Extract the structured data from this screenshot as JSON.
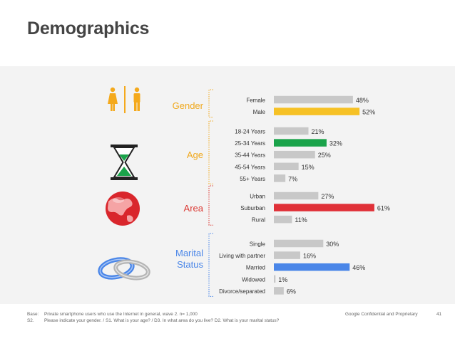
{
  "title": "Demographics",
  "footer": {
    "base_key": "Base:",
    "base_text": "Private smartphone users who use the Internet in general, wave 2. n= 1,000",
    "q_key": "S2.",
    "q_text": "Please indicate your gender. / S1. What is your age? / D3. In what area do you live? D2. What is your marital status?",
    "confidential": "Google Confidential and Proprietary",
    "page_number": "41"
  },
  "colors": {
    "bar": "#c8c8c8",
    "gender_highlight": "#f6c125",
    "age_highlight": "#1aa34a",
    "area_highlight": "#e03138",
    "marital_highlight": "#4a86e8",
    "section_label": "#f0a81c",
    "area_label": "#db3a34",
    "marital_label": "#4a86e8",
    "age_label": "#f0a81c"
  },
  "icons": [
    "restroom-gender-icon",
    "hourglass-icon",
    "globe-icon",
    "wedding-rings-icon"
  ],
  "chart_data": {
    "type": "bar",
    "orientation": "horizontal",
    "value_format": "percent",
    "groups": [
      {
        "name": "Gender",
        "icon": "restroom-gender-icon",
        "label_color": "#f0a81c",
        "highlight_color": "#f6c125",
        "categories": [
          "Female",
          "Male"
        ],
        "values": [
          48,
          52
        ],
        "labels": [
          "48%",
          "52%"
        ],
        "highlight_index": 1
      },
      {
        "name": "Age",
        "icon": "hourglass-icon",
        "label_color": "#f0a81c",
        "highlight_color": "#1aa34a",
        "categories": [
          "18-24 Years",
          "25-34 Years",
          "35-44 Years",
          "45-54 Years",
          "55+ Years"
        ],
        "values": [
          21,
          32,
          25,
          15,
          7
        ],
        "labels": [
          "21%",
          "32%",
          "25%",
          "15%",
          "7%"
        ],
        "highlight_index": 1
      },
      {
        "name": "Area",
        "icon": "globe-icon",
        "label_color": "#db3a34",
        "highlight_color": "#e03138",
        "categories": [
          "Urban",
          "Suburban",
          "Rural"
        ],
        "values": [
          27,
          61,
          11
        ],
        "labels": [
          "27%",
          "61%",
          "11%"
        ],
        "highlight_index": 1
      },
      {
        "name": "Marital\nStatus",
        "icon": "wedding-rings-icon",
        "label_color": "#4a86e8",
        "highlight_color": "#4a86e8",
        "categories": [
          "Single",
          "Living with partner",
          "Married",
          "Widowed",
          "Divorce/separated"
        ],
        "values": [
          30,
          16,
          46,
          1,
          6
        ],
        "labels": [
          "30%",
          "16%",
          "46%",
          "1%",
          "6%"
        ],
        "highlight_index": 2
      }
    ]
  }
}
